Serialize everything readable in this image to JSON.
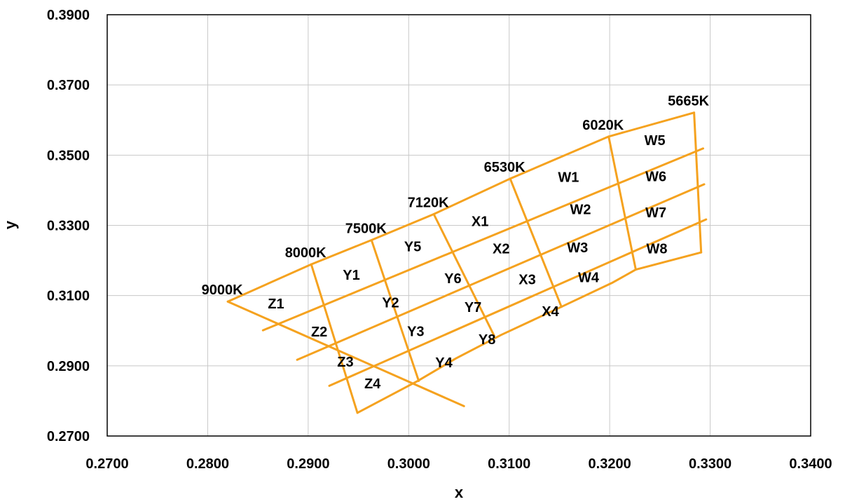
{
  "chart_data": {
    "type": "line",
    "xlabel": "x",
    "ylabel": "y",
    "xlim": [
      0.27,
      0.34
    ],
    "ylim": [
      0.27,
      0.39
    ],
    "x_ticks": [
      "0.2700",
      "0.2800",
      "0.2900",
      "0.3000",
      "0.3100",
      "0.3200",
      "0.3300",
      "0.3400"
    ],
    "y_ticks": [
      "0.2700",
      "0.2900",
      "0.3100",
      "0.3300",
      "0.3500",
      "0.3700",
      "0.3900"
    ],
    "grid": true,
    "line_color": "#f5a21f",
    "cct_boundaries": [
      {
        "label": "9000K",
        "points": [
          [
            0.282,
            0.3083
          ],
          [
            0.3055,
            0.2785
          ]
        ]
      },
      {
        "label": "8000K",
        "points": [
          [
            0.2903,
            0.3189
          ],
          [
            0.2949,
            0.2766
          ]
        ]
      },
      {
        "label": "7500K",
        "points": [
          [
            0.2963,
            0.3258
          ],
          [
            0.301,
            0.2857
          ]
        ]
      },
      {
        "label": "7120K",
        "points": [
          [
            0.3025,
            0.3332
          ],
          [
            0.3085,
            0.2986
          ]
        ]
      },
      {
        "label": "6530K",
        "points": [
          [
            0.3101,
            0.3433
          ],
          [
            0.3152,
            0.3068
          ]
        ]
      },
      {
        "label": "6020K",
        "points": [
          [
            0.3199,
            0.3553
          ],
          [
            0.3226,
            0.3174
          ]
        ]
      },
      {
        "label": "5665K",
        "points": [
          [
            0.3284,
            0.3621
          ],
          [
            0.3291,
            0.3223
          ]
        ]
      }
    ],
    "chromaticity_lines": [
      {
        "points": [
          [
            0.282,
            0.3083
          ],
          [
            0.2903,
            0.3189
          ],
          [
            0.2963,
            0.3258
          ],
          [
            0.3025,
            0.3332
          ],
          [
            0.3101,
            0.3433
          ],
          [
            0.3199,
            0.3553
          ],
          [
            0.3284,
            0.3621
          ]
        ]
      },
      {
        "points": [
          [
            0.2855,
            0.3001
          ],
          [
            0.3293,
            0.3519
          ]
        ]
      },
      {
        "points": [
          [
            0.2889,
            0.2917
          ],
          [
            0.3294,
            0.3417
          ]
        ]
      },
      {
        "points": [
          [
            0.2921,
            0.2843
          ],
          [
            0.3296,
            0.3317
          ]
        ]
      },
      {
        "points": [
          [
            0.2949,
            0.2766
          ],
          [
            0.3009,
            0.2857
          ],
          [
            0.3047,
            0.2921
          ],
          [
            0.3092,
            0.2988
          ],
          [
            0.3152,
            0.3068
          ],
          [
            0.3203,
            0.3137
          ],
          [
            0.3226,
            0.3174
          ],
          [
            0.3291,
            0.3223
          ]
        ]
      }
    ],
    "bins": [
      {
        "label": "Z1",
        "x": 0.2868,
        "y": 0.3074
      },
      {
        "label": "Z2",
        "x": 0.2911,
        "y": 0.2994
      },
      {
        "label": "Z3",
        "x": 0.2937,
        "y": 0.2908
      },
      {
        "label": "Z4",
        "x": 0.2964,
        "y": 0.2846
      },
      {
        "label": "Y1",
        "x": 0.2943,
        "y": 0.3156
      },
      {
        "label": "Y2",
        "x": 0.2982,
        "y": 0.3077
      },
      {
        "label": "Y3",
        "x": 0.3007,
        "y": 0.2995
      },
      {
        "label": "Y4",
        "x": 0.3035,
        "y": 0.2906
      },
      {
        "label": "Y5",
        "x": 0.3004,
        "y": 0.3237
      },
      {
        "label": "Y6",
        "x": 0.3044,
        "y": 0.3146
      },
      {
        "label": "Y7",
        "x": 0.3064,
        "y": 0.3064
      },
      {
        "label": "Y8",
        "x": 0.3078,
        "y": 0.2972
      },
      {
        "label": "X1",
        "x": 0.3071,
        "y": 0.3309
      },
      {
        "label": "X2",
        "x": 0.3092,
        "y": 0.3231
      },
      {
        "label": "X3",
        "x": 0.3118,
        "y": 0.3143
      },
      {
        "label": "X4",
        "x": 0.3141,
        "y": 0.3052
      },
      {
        "label": "W1",
        "x": 0.3159,
        "y": 0.3434
      },
      {
        "label": "W2",
        "x": 0.3171,
        "y": 0.3342
      },
      {
        "label": "W3",
        "x": 0.3168,
        "y": 0.3234
      },
      {
        "label": "W4",
        "x": 0.3179,
        "y": 0.3149
      },
      {
        "label": "W5",
        "x": 0.3245,
        "y": 0.3539
      },
      {
        "label": "W6",
        "x": 0.3246,
        "y": 0.3436
      },
      {
        "label": "W7",
        "x": 0.3246,
        "y": 0.3334
      },
      {
        "label": "W8",
        "x": 0.3247,
        "y": 0.3231
      }
    ]
  }
}
